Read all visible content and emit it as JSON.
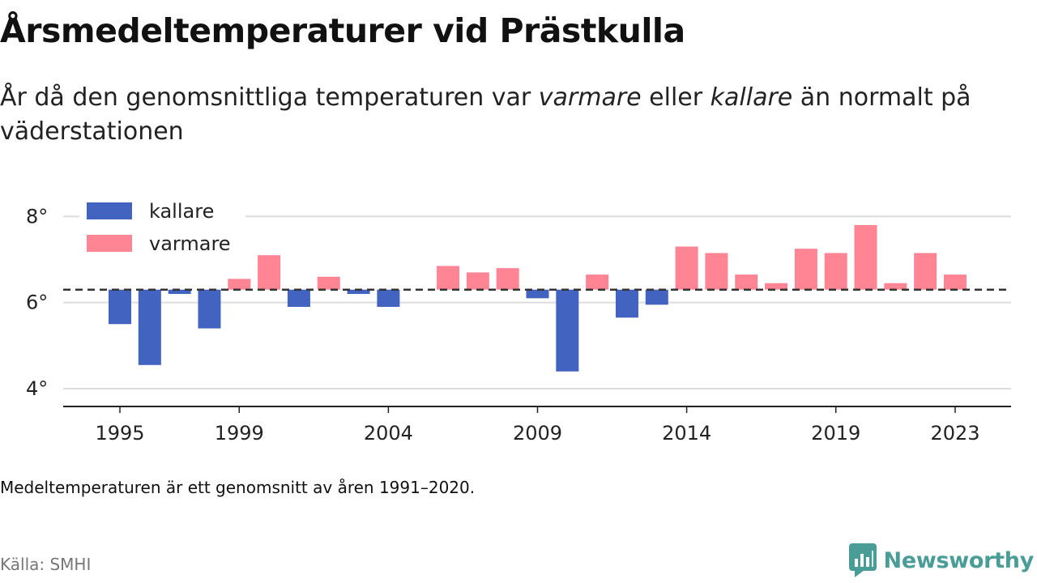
{
  "header": {
    "title": "Årsmedeltemperaturer vid Prästkulla",
    "subtitle_part1": "År då den genomsnittliga temperaturen var ",
    "subtitle_em1": "varmare",
    "subtitle_part2": " eller ",
    "subtitle_em2": "kallare",
    "subtitle_part3": " än normalt på väderstationen"
  },
  "footer": {
    "note": "Medeltemperaturen är ett genomsnitt av åren 1991–2020.",
    "source": "Källa: SMHI",
    "brand": "Newsworthy"
  },
  "colors": {
    "colder": "#4363c0",
    "warmer": "#ff8595",
    "grid": "#dddddd",
    "axis": "#222222",
    "reference": "#333333",
    "brand": "#4a9c96"
  },
  "chart_data": {
    "type": "bar",
    "baseline": 6.3,
    "baseline_style": "dashed",
    "ylim": [
      3.7,
      8.4
    ],
    "yticks": [
      4,
      6,
      8
    ],
    "ytick_labels": [
      "4°",
      "6°",
      "8°"
    ],
    "xticks": [
      1995,
      1999,
      2004,
      2009,
      2014,
      2019,
      2023
    ],
    "xtick_labels": [
      "1995",
      "1999",
      "2004",
      "2009",
      "2014",
      "2019",
      "2023"
    ],
    "grid": "horizontal",
    "legend": {
      "position": "top-left",
      "items": [
        {
          "label": "kallare",
          "key": "colder"
        },
        {
          "label": "varmare",
          "key": "warmer"
        }
      ]
    },
    "x": [
      1995,
      1996,
      1997,
      1998,
      1999,
      2000,
      2001,
      2002,
      2003,
      2004,
      2005,
      2006,
      2007,
      2008,
      2009,
      2010,
      2011,
      2012,
      2013,
      2014,
      2015,
      2016,
      2017,
      2018,
      2019,
      2020,
      2021,
      2022,
      2023
    ],
    "values": [
      5.5,
      4.55,
      6.2,
      5.4,
      6.55,
      7.1,
      5.9,
      6.6,
      6.2,
      5.9,
      6.3,
      6.85,
      6.7,
      6.8,
      6.1,
      4.4,
      6.65,
      5.65,
      5.95,
      7.3,
      7.15,
      6.65,
      6.45,
      7.25,
      7.15,
      7.8,
      6.45,
      7.15,
      6.65
    ]
  }
}
